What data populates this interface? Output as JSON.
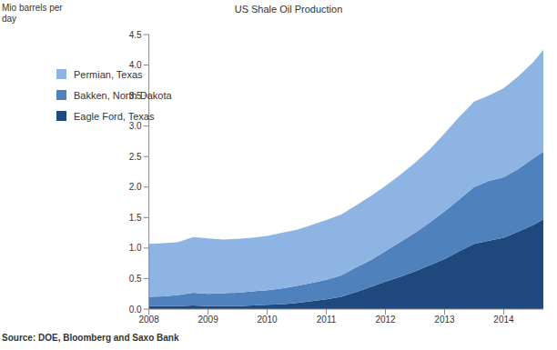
{
  "chart_data": {
    "type": "area",
    "title": "US Shale Oil Production",
    "y_label": "Mio barrels per day",
    "source": "Source: DOE, Bloomberg and Saxo Bank",
    "stacked": true,
    "grid": false,
    "legend": "upper left",
    "x": [
      2008,
      2008.25,
      2008.5,
      2008.75,
      2009,
      2009.25,
      2009.5,
      2009.75,
      2010,
      2010.25,
      2010.5,
      2010.75,
      2011,
      2011.25,
      2011.5,
      2011.75,
      2012,
      2012.25,
      2012.5,
      2012.75,
      2013,
      2013.25,
      2013.5,
      2013.75,
      2014,
      2014.25,
      2014.5,
      2014.67
    ],
    "xlim": [
      2008,
      2014.67
    ],
    "xticks": [
      2008,
      2009,
      2010,
      2011,
      2012,
      2013,
      2014
    ],
    "ylim": [
      0,
      4.5
    ],
    "yticks": [
      {
        "value": 0,
        "label": "0.0"
      },
      0.5,
      {
        "value": 1,
        "label": "1.0"
      },
      1.5,
      {
        "value": 2,
        "label": "2.0"
      },
      2.5,
      {
        "value": 3,
        "label": "3.0"
      },
      3.5,
      {
        "value": 4,
        "label": "4.0"
      },
      4.5
    ],
    "series": [
      {
        "name": "Permian, Texas",
        "color": "#8eb4e3",
        "values": [
          0.87,
          0.87,
          0.87,
          0.91,
          0.91,
          0.88,
          0.88,
          0.88,
          0.89,
          0.91,
          0.92,
          0.95,
          0.98,
          1.0,
          1.02,
          1.05,
          1.07,
          1.1,
          1.15,
          1.2,
          1.28,
          1.35,
          1.4,
          1.4,
          1.46,
          1.52,
          1.58,
          1.67
        ]
      },
      {
        "name": "Bakken, North Dakota",
        "color": "#4f81bd",
        "values": [
          0.15,
          0.16,
          0.18,
          0.21,
          0.2,
          0.21,
          0.22,
          0.23,
          0.24,
          0.26,
          0.28,
          0.3,
          0.32,
          0.35,
          0.4,
          0.44,
          0.5,
          0.57,
          0.63,
          0.7,
          0.78,
          0.85,
          0.93,
          0.98,
          0.99,
          1.03,
          1.09,
          1.11
        ]
      },
      {
        "name": "Eagle Ford, Texas",
        "color": "#1f497d",
        "values": [
          0.05,
          0.05,
          0.05,
          0.06,
          0.05,
          0.05,
          0.05,
          0.06,
          0.07,
          0.08,
          0.1,
          0.13,
          0.16,
          0.2,
          0.28,
          0.36,
          0.45,
          0.53,
          0.62,
          0.72,
          0.82,
          0.95,
          1.07,
          1.12,
          1.17,
          1.27,
          1.38,
          1.47
        ]
      }
    ]
  }
}
